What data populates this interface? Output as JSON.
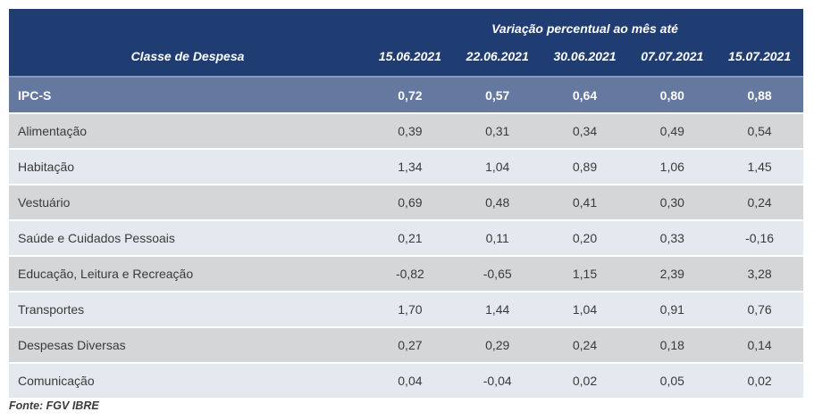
{
  "table": {
    "header_title": "Variação percentual ao mês até",
    "label_column_header": "Classe de Despesa",
    "date_columns": [
      "15.06.2021",
      "22.06.2021",
      "30.06.2021",
      "07.07.2021",
      "15.07.2021"
    ],
    "highlight_row": {
      "label": "IPC-S",
      "values": [
        "0,72",
        "0,57",
        "0,64",
        "0,80",
        "0,88"
      ]
    },
    "rows": [
      {
        "label": "Alimentação",
        "values": [
          "0,39",
          "0,31",
          "0,34",
          "0,49",
          "0,54"
        ]
      },
      {
        "label": "Habitação",
        "values": [
          "1,34",
          "1,04",
          "0,89",
          "1,06",
          "1,45"
        ]
      },
      {
        "label": "Vestuário",
        "values": [
          "0,69",
          "0,48",
          "0,41",
          "0,30",
          "0,24"
        ]
      },
      {
        "label": "Saúde e Cuidados Pessoais",
        "values": [
          "0,21",
          "0,11",
          "0,20",
          "0,33",
          "-0,16"
        ]
      },
      {
        "label": "Educação, Leitura e Recreação",
        "values": [
          "-0,82",
          "-0,65",
          "1,15",
          "2,39",
          "3,28"
        ]
      },
      {
        "label": "Transportes",
        "values": [
          "1,70",
          "1,44",
          "1,04",
          "0,91",
          "0,76"
        ]
      },
      {
        "label": "Despesas Diversas",
        "values": [
          "0,27",
          "0,29",
          "0,24",
          "0,18",
          "0,14"
        ]
      },
      {
        "label": "Comunicação",
        "values": [
          "0,04",
          "-0,04",
          "0,02",
          "0,05",
          "0,02"
        ]
      }
    ]
  },
  "footer": {
    "source": "Fonte: FGV IBRE"
  },
  "colors": {
    "header_bg": "#1f3d73",
    "highlight_row_bg": "#65789f",
    "stripe_grey": "#d5d6d8",
    "stripe_light": "#e3e9ee",
    "header_text": "#ffffff",
    "body_text": "#3a3a3a"
  },
  "chart_data": {
    "type": "table",
    "title": "Variação percentual ao mês até",
    "columns": [
      "Classe de Despesa",
      "15.06.2021",
      "22.06.2021",
      "30.06.2021",
      "07.07.2021",
      "15.07.2021"
    ],
    "rows": [
      [
        "IPC-S",
        0.72,
        0.57,
        0.64,
        0.8,
        0.88
      ],
      [
        "Alimentação",
        0.39,
        0.31,
        0.34,
        0.49,
        0.54
      ],
      [
        "Habitação",
        1.34,
        1.04,
        0.89,
        1.06,
        1.45
      ],
      [
        "Vestuário",
        0.69,
        0.48,
        0.41,
        0.3,
        0.24
      ],
      [
        "Saúde e Cuidados Pessoais",
        0.21,
        0.11,
        0.2,
        0.33,
        -0.16
      ],
      [
        "Educação, Leitura e Recreação",
        -0.82,
        -0.65,
        1.15,
        2.39,
        3.28
      ],
      [
        "Transportes",
        1.7,
        1.44,
        1.04,
        0.91,
        0.76
      ],
      [
        "Despesas Diversas",
        0.27,
        0.29,
        0.24,
        0.18,
        0.14
      ],
      [
        "Comunicação",
        0.04,
        -0.04,
        0.02,
        0.05,
        0.02
      ]
    ],
    "source": "Fonte: FGV IBRE",
    "decimal_separator": ","
  }
}
